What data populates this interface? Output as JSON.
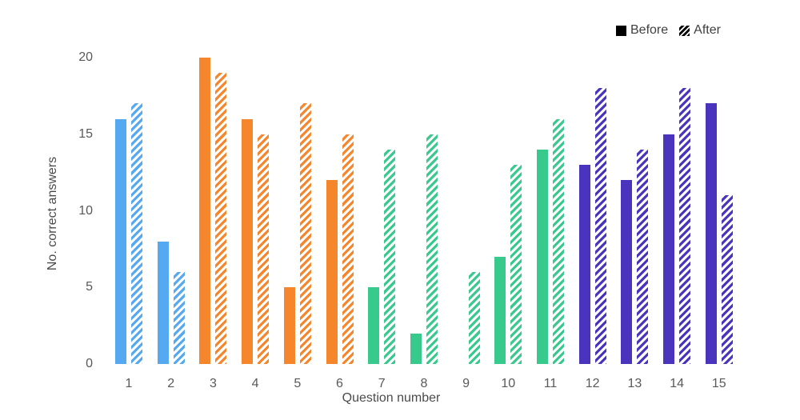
{
  "chart_data": {
    "type": "bar",
    "title": "",
    "xlabel": "Question number",
    "ylabel": "No. correct answers",
    "categories": [
      "1",
      "2",
      "3",
      "4",
      "5",
      "6",
      "7",
      "8",
      "9",
      "10",
      "11",
      "12",
      "13",
      "14",
      "15"
    ],
    "series": [
      {
        "name": "Before",
        "style": "solid",
        "values": [
          16,
          8,
          20,
          16,
          5,
          12,
          5,
          2,
          0,
          7,
          14,
          13,
          12,
          15,
          17
        ]
      },
      {
        "name": "After",
        "style": "hatched",
        "values": [
          17,
          6,
          19,
          15,
          17,
          15,
          14,
          15,
          6,
          13,
          16,
          18,
          14,
          18,
          11
        ]
      }
    ],
    "bar_colors": [
      "#54A9F1",
      "#54A9F1",
      "#F6862B",
      "#F6862B",
      "#F6862B",
      "#F6862B",
      "#38C98C",
      "#38C98C",
      "#38C98C",
      "#38C98C",
      "#38C98C",
      "#4B34BD",
      "#4B34BD",
      "#4B34BD",
      "#4B34BD"
    ],
    "ylim": [
      0,
      20
    ],
    "yticks": [
      0,
      5,
      10,
      15,
      20
    ],
    "grid": false,
    "legend_position": "top-right",
    "legend_marker_color": "#000000",
    "tick_text_color": "#595959"
  }
}
